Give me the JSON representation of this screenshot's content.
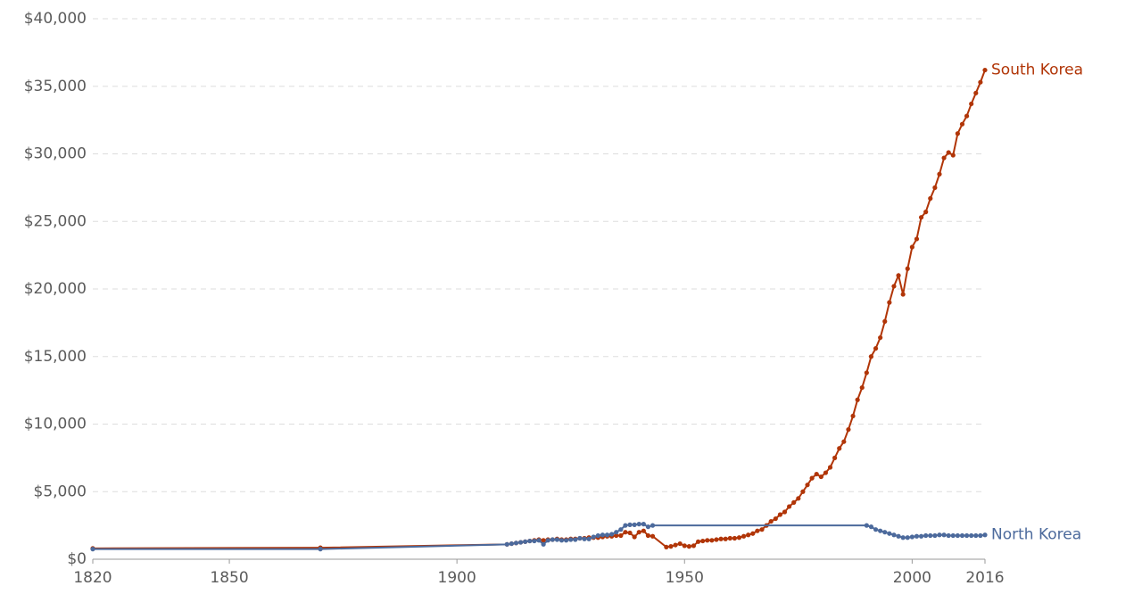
{
  "chart_data": {
    "type": "line",
    "xlim": [
      1820,
      2016
    ],
    "xticks": [
      1820,
      1850,
      1900,
      1950,
      2000,
      2016
    ],
    "ylim": [
      0,
      40000
    ],
    "yticks": [
      {
        "value": 0,
        "label": "$0"
      },
      {
        "value": 5000,
        "label": "$5,000"
      },
      {
        "value": 10000,
        "label": "$10,000"
      },
      {
        "value": 15000,
        "label": "$15,000"
      },
      {
        "value": 20000,
        "label": "$20,000"
      },
      {
        "value": 25000,
        "label": "$25,000"
      },
      {
        "value": 30000,
        "label": "$30,000"
      },
      {
        "value": 35000,
        "label": "$35,000"
      },
      {
        "value": 40000,
        "label": "$40,000"
      }
    ],
    "grid": true,
    "series": [
      {
        "name": "South Korea",
        "color": "#b13507",
        "x": [
          1820,
          1870,
          1911,
          1912,
          1913,
          1914,
          1915,
          1916,
          1917,
          1918,
          1919,
          1920,
          1921,
          1922,
          1923,
          1924,
          1925,
          1926,
          1927,
          1928,
          1929,
          1930,
          1931,
          1932,
          1933,
          1934,
          1935,
          1936,
          1937,
          1938,
          1939,
          1940,
          1941,
          1942,
          1943,
          1946,
          1947,
          1948,
          1949,
          1950,
          1951,
          1952,
          1953,
          1954,
          1955,
          1956,
          1957,
          1958,
          1959,
          1960,
          1961,
          1962,
          1963,
          1964,
          1965,
          1966,
          1967,
          1968,
          1969,
          1970,
          1971,
          1972,
          1973,
          1974,
          1975,
          1976,
          1977,
          1978,
          1979,
          1980,
          1981,
          1982,
          1983,
          1984,
          1985,
          1986,
          1987,
          1988,
          1989,
          1990,
          1991,
          1992,
          1993,
          1994,
          1995,
          1996,
          1997,
          1998,
          1999,
          2000,
          2001,
          2002,
          2003,
          2004,
          2005,
          2006,
          2007,
          2008,
          2009,
          2010,
          2011,
          2012,
          2013,
          2014,
          2015,
          2016
        ],
        "values": [
          800,
          850,
          1100,
          1150,
          1200,
          1250,
          1300,
          1350,
          1400,
          1450,
          1400,
          1450,
          1450,
          1500,
          1450,
          1450,
          1500,
          1500,
          1550,
          1550,
          1600,
          1600,
          1600,
          1650,
          1700,
          1700,
          1750,
          1750,
          2000,
          1950,
          1650,
          2000,
          2100,
          1750,
          1700,
          900,
          950,
          1050,
          1150,
          1000,
          950,
          1000,
          1300,
          1350,
          1400,
          1400,
          1450,
          1500,
          1500,
          1550,
          1550,
          1600,
          1700,
          1800,
          1900,
          2100,
          2200,
          2500,
          2800,
          3000,
          3300,
          3500,
          3900,
          4200,
          4500,
          5000,
          5500,
          6000,
          6300,
          6100,
          6400,
          6800,
          7500,
          8200,
          8700,
          9600,
          10600,
          11800,
          12700,
          13800,
          15000,
          15600,
          16400,
          17600,
          19000,
          20200,
          21000,
          19600,
          21500,
          23100,
          23700,
          25300,
          25700,
          26700,
          27500,
          28500,
          29700,
          30100,
          29900,
          31500,
          32200,
          32800,
          33700,
          34500,
          35300,
          36200
        ]
      },
      {
        "name": "North Korea",
        "color": "#4c6a9c",
        "x": [
          1820,
          1870,
          1911,
          1912,
          1913,
          1914,
          1915,
          1916,
          1917,
          1918,
          1919,
          1920,
          1921,
          1922,
          1923,
          1924,
          1925,
          1926,
          1927,
          1928,
          1929,
          1930,
          1931,
          1932,
          1933,
          1934,
          1935,
          1936,
          1937,
          1938,
          1939,
          1940,
          1941,
          1942,
          1943,
          1990,
          1991,
          1992,
          1993,
          1994,
          1995,
          1996,
          1997,
          1998,
          1999,
          2000,
          2001,
          2002,
          2003,
          2004,
          2005,
          2006,
          2007,
          2008,
          2009,
          2010,
          2011,
          2012,
          2013,
          2014,
          2015,
          2016
        ],
        "values": [
          750,
          750,
          1100,
          1150,
          1200,
          1250,
          1300,
          1350,
          1350,
          1400,
          1100,
          1400,
          1450,
          1450,
          1400,
          1400,
          1450,
          1450,
          1550,
          1500,
          1500,
          1650,
          1750,
          1800,
          1800,
          1850,
          2000,
          2200,
          2500,
          2550,
          2550,
          2600,
          2600,
          2400,
          2500,
          2500,
          2400,
          2200,
          2100,
          2000,
          1900,
          1800,
          1700,
          1600,
          1600,
          1650,
          1700,
          1700,
          1750,
          1750,
          1750,
          1800,
          1800,
          1750,
          1750,
          1750,
          1750,
          1750,
          1750,
          1750,
          1750,
          1800
        ]
      }
    ]
  }
}
